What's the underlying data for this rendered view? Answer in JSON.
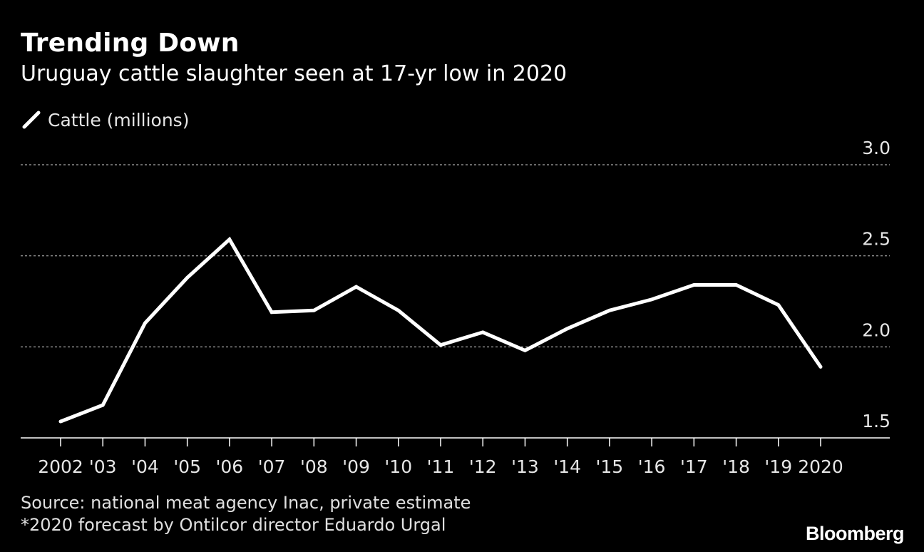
{
  "title": "Trending Down",
  "subtitle": "Uruguay cattle slaughter seen at 17-yr low in 2020",
  "legend_label": "Cattle (millions)",
  "source": "Source: national meat agency Inac, private estimate",
  "note": "*2020 forecast by Ontilcor director Eduardo Urgal",
  "brand": "Bloomberg",
  "colors": {
    "background": "#000000",
    "line": "#ffffff",
    "grid": "#8a8a8a",
    "axis": "#ffffff"
  },
  "chart_data": {
    "type": "line",
    "categories": [
      "2002",
      "'03",
      "'04",
      "'05",
      "'06",
      "'07",
      "'08",
      "'09",
      "'10",
      "'11",
      "'12",
      "'13",
      "'14",
      "'15",
      "'16",
      "'17",
      "'18",
      "'19",
      "2020"
    ],
    "series": [
      {
        "name": "Cattle (millions)",
        "values": [
          1.59,
          1.68,
          2.13,
          2.38,
          2.59,
          2.19,
          2.2,
          2.33,
          2.2,
          2.01,
          2.08,
          1.98,
          2.1,
          2.2,
          2.26,
          2.34,
          2.34,
          2.23,
          1.89
        ]
      }
    ],
    "yticks": [
      "1.5",
      "2.0",
      "2.5",
      "3.0"
    ],
    "ylim": [
      1.5,
      3.0
    ],
    "grid": true,
    "y_axis_side": "right",
    "legend_position": "top-left"
  }
}
